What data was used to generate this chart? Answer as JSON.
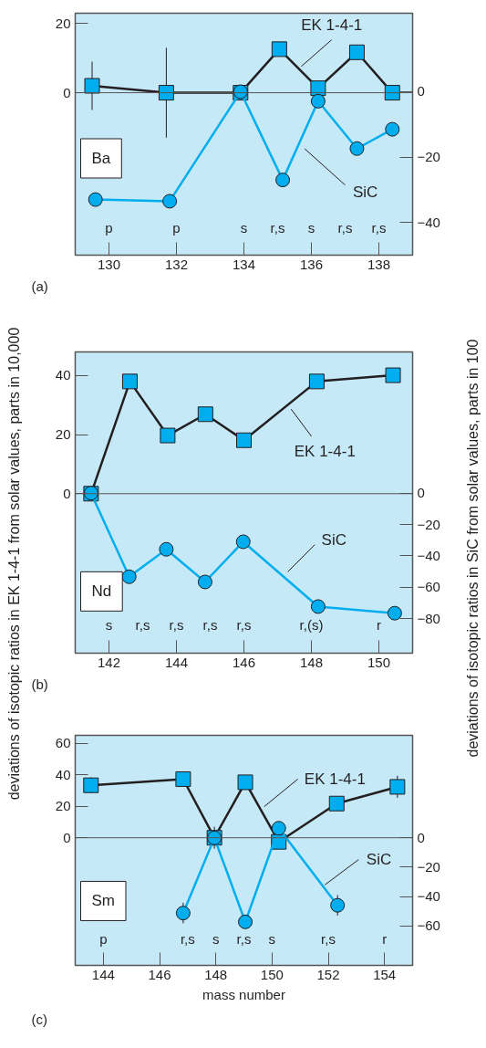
{
  "chart_data": [
    {
      "type": "line",
      "title": "(a)",
      "xlim": [
        129,
        139
      ],
      "xticks": [
        130,
        132,
        134,
        136,
        138
      ],
      "ylim": [
        -47,
        23
      ],
      "yticks": [
        0,
        20
      ],
      "y2lim": [
        -50,
        24
      ],
      "y2ticks": [
        {
          "value": 0,
          "label": "0"
        },
        {
          "value": -20,
          "label": "−20"
        },
        {
          "value": -40,
          "label": "−40"
        }
      ],
      "ref_lines": [
        {
          "axis": "y",
          "value": 0,
          "color": "#555555"
        }
      ],
      "annotations": [
        "Ba",
        "p",
        "p",
        "s",
        "r,s",
        "s",
        "r,s",
        "r,s"
      ],
      "series": [
        {
          "name": "EK 1-4-1",
          "color": "#231f20",
          "colors": [
            "#00aeef",
            "#00aeef",
            "#00aeef",
            "#00aeef",
            "#00aeef",
            "#00aeef",
            "#00aeef"
          ],
          "marker": "square",
          "x": [
            129.5,
            131.7,
            133.9,
            135.05,
            136.2,
            137.35,
            138.4
          ],
          "values": [
            2,
            0,
            0,
            12.6,
            1.3,
            11.7,
            0
          ],
          "errors": [
            7,
            13,
            null,
            null,
            null,
            null,
            null
          ]
        },
        {
          "name": "SiC",
          "color": "#00aeef",
          "marker": "circle",
          "axis": "y2",
          "x": [
            129.6,
            131.8,
            133.9,
            135.15,
            136.2,
            137.35,
            138.4
          ],
          "values": [
            -33,
            -33.5,
            0,
            -27,
            -2.9,
            -17.4,
            -11.5
          ]
        }
      ]
    },
    {
      "type": "line",
      "title": "(b)",
      "ylabel": "deviations of isotopic ratios in EK 1-4-1 from solar values, parts in 10,000",
      "y2label": "deviations of isotopic ratios in SiC from solar values, parts in 100",
      "xlim": [
        141,
        151
      ],
      "xticks": [
        142,
        144,
        146,
        148,
        150
      ],
      "ylim": [
        -54,
        48
      ],
      "yticks": [
        0,
        20,
        40
      ],
      "y2lim": [
        -102,
        90
      ],
      "y2ticks": [
        {
          "value": 0,
          "label": "0"
        },
        {
          "value": -20,
          "label": "−20"
        },
        {
          "value": -40,
          "label": "−40"
        },
        {
          "value": -60,
          "label": "−60"
        },
        {
          "value": -80,
          "label": "−80"
        }
      ],
      "ref_lines": [
        {
          "axis": "y",
          "value": 0,
          "color": "#555555"
        }
      ],
      "annotations": [
        "Nd",
        "s",
        "r,s",
        "r,s",
        "r,s",
        "r,s",
        "r,(s)",
        "r"
      ],
      "series": [
        {
          "name": "EK 1-4-1",
          "color": "#231f20",
          "colors": [
            "#00aeef",
            "#00aeef",
            "#00aeef",
            "#00aeef",
            "#00aeef",
            "#00aeef",
            "#00aeef"
          ],
          "marker": "square",
          "x": [
            141.47,
            142.62,
            143.74,
            144.86,
            146.0,
            148.16,
            150.42
          ],
          "values": [
            0,
            38,
            19.7,
            26.9,
            18.1,
            38,
            40.1
          ]
        },
        {
          "name": "SiC",
          "color": "#00aeef",
          "marker": "circle",
          "axis": "y2",
          "x": [
            141.47,
            142.6,
            143.7,
            144.85,
            145.98,
            148.2,
            150.47
          ],
          "values": [
            0,
            -53.3,
            -35.8,
            -56.6,
            -31,
            -72.3,
            -76.5
          ]
        }
      ]
    },
    {
      "type": "line",
      "title": "(c)",
      "xlabel": "mass number",
      "xlim": [
        143,
        155
      ],
      "xticks": [
        144,
        146,
        148,
        150,
        152,
        154
      ],
      "ylim": [
        -81,
        65
      ],
      "yticks": [
        0,
        20,
        40,
        60
      ],
      "y2lim": [
        -87,
        70
      ],
      "y2ticks": [
        {
          "value": 0,
          "label": "0"
        },
        {
          "value": -20,
          "label": "−20"
        },
        {
          "value": -40,
          "label": "−40"
        },
        {
          "value": -60,
          "label": "−60"
        }
      ],
      "ref_lines": [
        {
          "axis": "y",
          "value": 0,
          "color": "#555555"
        }
      ],
      "annotations": [
        "Sm",
        "p",
        "r,s",
        "s",
        "r,s",
        "s",
        "r,s",
        "r"
      ],
      "series": [
        {
          "name": "EK 1-4-1",
          "color": "#231f20",
          "colors": [
            "#00aeef",
            "#00aeef",
            "#00aeef",
            "#00aeef",
            "#00aeef",
            "#00aeef",
            "#00aeef"
          ],
          "marker": "square",
          "x": [
            143.56,
            146.84,
            147.95,
            149.05,
            150.24,
            152.3,
            154.46
          ],
          "values": [
            33.3,
            37.2,
            0,
            35.2,
            -2.6,
            21.7,
            32.3
          ],
          "errors": [
            5,
            null,
            7,
            null,
            null,
            null,
            7
          ]
        },
        {
          "name": "SiC",
          "color": "#00aeef",
          "marker": "circle",
          "axis": "y2",
          "x": [
            146.84,
            147.95,
            149.05,
            150.24,
            152.33
          ],
          "values": [
            -51.3,
            0,
            -57.3,
            6.6,
            -46
          ],
          "errors": [
            7,
            null,
            null,
            null,
            7
          ]
        }
      ]
    }
  ]
}
